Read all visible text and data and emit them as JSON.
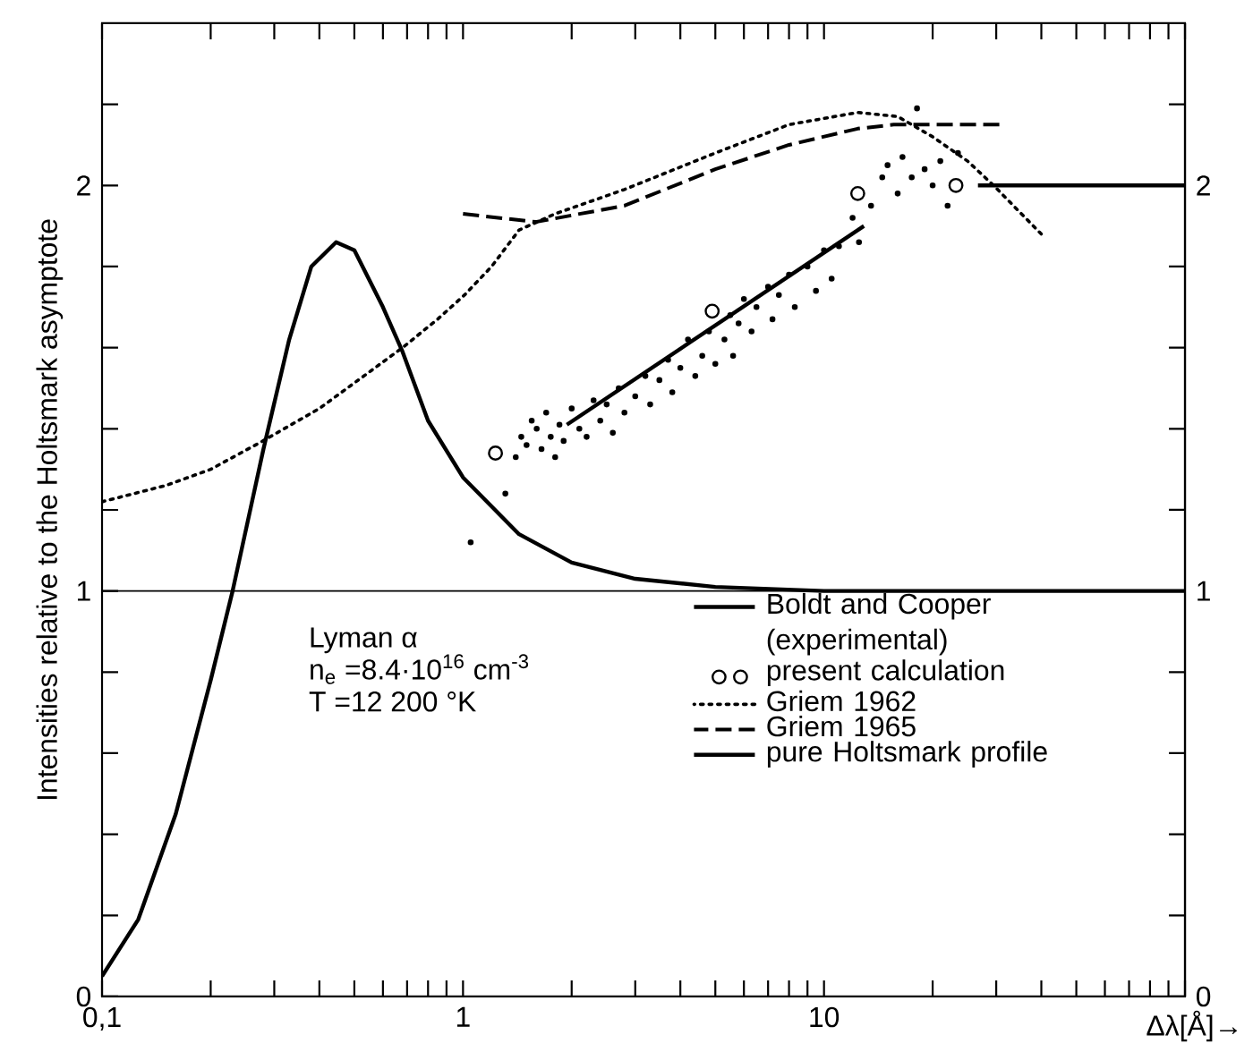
{
  "chart_data": {
    "type": "line",
    "xlabel": "Δλ[Å]→",
    "ylabel": "Intensities relative to the Holtsmark asymptote",
    "log": "x",
    "xlim": [
      0.1,
      100
    ],
    "xticks": [
      {
        "value": 0.1,
        "label": "0,1"
      },
      {
        "value": 0.2,
        "label": null
      },
      {
        "value": 0.3,
        "label": null
      },
      {
        "value": 0.4,
        "label": null
      },
      {
        "value": 0.5,
        "label": null
      },
      {
        "value": 0.6,
        "label": null
      },
      {
        "value": 0.7,
        "label": null
      },
      {
        "value": 0.8,
        "label": null
      },
      {
        "value": 0.9,
        "label": null
      },
      1,
      {
        "value": 2,
        "label": null
      },
      {
        "value": 3,
        "label": null
      },
      {
        "value": 4,
        "label": null
      },
      {
        "value": 5,
        "label": null
      },
      {
        "value": 6,
        "label": null
      },
      {
        "value": 7,
        "label": null
      },
      {
        "value": 8,
        "label": null
      },
      {
        "value": 9,
        "label": null
      },
      10,
      {
        "value": 20,
        "label": null
      },
      {
        "value": 30,
        "label": null
      },
      {
        "value": 40,
        "label": null
      },
      {
        "value": 50,
        "label": null
      },
      {
        "value": 60,
        "label": null
      },
      {
        "value": 70,
        "label": null
      },
      {
        "value": 80,
        "label": null
      },
      {
        "value": 90,
        "label": null
      },
      {
        "value": 100,
        "label": null
      }
    ],
    "ylim": [
      0,
      2.4
    ],
    "yticks": [
      0,
      {
        "value": 0.2,
        "label": null
      },
      {
        "value": 0.4,
        "label": null
      },
      {
        "value": 0.6,
        "label": null
      },
      {
        "value": 0.8,
        "label": null
      },
      1,
      {
        "value": 1.2,
        "label": null
      },
      {
        "value": 1.4,
        "label": null
      },
      {
        "value": 1.6,
        "label": null
      },
      {
        "value": 1.8,
        "label": null
      },
      2,
      {
        "value": 2.2,
        "label": null
      }
    ],
    "y2lim": [
      0,
      2.4
    ],
    "y2ticks": [
      0,
      {
        "value": 0.2,
        "label": null
      },
      {
        "value": 0.4,
        "label": null
      },
      {
        "value": 0.6,
        "label": null
      },
      {
        "value": 0.8,
        "label": null
      },
      1,
      {
        "value": 1.2,
        "label": null
      },
      {
        "value": 1.4,
        "label": null
      },
      {
        "value": 1.6,
        "label": null
      },
      {
        "value": 1.8,
        "label": null
      },
      2,
      {
        "value": 2.2,
        "label": null
      }
    ],
    "ref_lines": [
      {
        "axis": "y",
        "value": 1,
        "color": "#000000"
      }
    ],
    "legend": "bottom right",
    "annotations": [
      "Lyman α",
      "n$_{e}$ =8.4·10$^{16}$ cm$^{-3}$",
      "T =12 200 °K"
    ],
    "series": [
      {
        "name": "Boldt and Cooper (experimental)",
        "type": "line",
        "color": "#000000",
        "line_style": "solid",
        "marker": "none",
        "x": [
          1.94,
          12.9
        ],
        "values": [
          1.41,
          1.9
        ]
      },
      {
        "name": "present calculation",
        "type": "scatter",
        "color": "#000000",
        "marker": "circle",
        "x": [
          1.23,
          4.9,
          12.4,
          23.2
        ],
        "values": [
          1.34,
          1.69,
          1.98,
          2.0
        ]
      },
      {
        "name": "Griem 1962",
        "type": "line",
        "color": "#000000",
        "line_style": "dotted",
        "marker": "none",
        "x": [
          0.1,
          0.15,
          0.2,
          0.279,
          0.4,
          0.55,
          0.68,
          0.85,
          1.01,
          1.2,
          1.43,
          1.8,
          2.8,
          5,
          8,
          12.4,
          16,
          20,
          25,
          29.5,
          40
        ],
        "values": [
          1.22,
          1.26,
          1.3,
          1.37,
          1.45,
          1.54,
          1.6,
          1.67,
          1.73,
          1.8,
          1.89,
          1.93,
          1.99,
          2.08,
          2.15,
          2.18,
          2.17,
          2.12,
          2.06,
          2.0,
          1.88
        ]
      },
      {
        "name": "Griem 1965",
        "type": "line",
        "color": "#000000",
        "line_style": "dashed",
        "marker": "none",
        "x": [
          1.0,
          1.59,
          2.8,
          5,
          8,
          12.4,
          15.6,
          31
        ],
        "values": [
          1.93,
          1.91,
          1.95,
          2.04,
          2.1,
          2.14,
          2.15,
          2.15
        ]
      },
      {
        "name": "pure Holtsmark profile",
        "type": "line",
        "color": "#000000",
        "line_style": "solid",
        "marker": "none",
        "x": [
          0.1,
          0.126,
          0.16,
          0.2,
          0.23,
          0.28,
          0.33,
          0.38,
          0.445,
          0.5,
          0.6,
          0.68,
          0.8,
          1.0,
          1.43,
          2,
          3,
          5,
          10,
          100
        ],
        "values": [
          0.05,
          0.19,
          0.45,
          0.78,
          1.0,
          1.35,
          1.62,
          1.8,
          1.86,
          1.84,
          1.7,
          1.59,
          1.42,
          1.28,
          1.14,
          1.07,
          1.03,
          1.01,
          1.0,
          1.0
        ]
      },
      {
        "type": "scatter",
        "color": "#000000",
        "marker": "circle",
        "x": [
          1.05,
          1.31,
          1.4,
          1.45,
          1.5,
          1.55,
          1.6,
          1.65,
          1.7,
          1.75,
          1.8,
          1.85,
          1.9,
          2.0,
          2.1,
          2.2,
          2.3,
          2.4,
          2.5,
          2.6,
          2.7,
          2.8,
          3.0,
          3.2,
          3.3,
          3.5,
          3.7,
          3.8,
          4.0,
          4.2,
          4.4,
          4.6,
          4.8,
          5.0,
          5.3,
          5.5,
          5.6,
          5.8,
          6.0,
          6.3,
          6.5,
          7.0,
          7.2,
          7.5,
          8.0,
          8.3,
          9.0,
          9.5,
          10,
          10.5,
          11,
          12,
          12.5,
          13.5,
          14.5,
          15,
          16,
          16.5,
          17.5,
          18.1,
          19,
          20,
          21,
          22,
          23.5
        ],
        "values": [
          1.12,
          1.24,
          1.33,
          1.38,
          1.36,
          1.42,
          1.4,
          1.35,
          1.44,
          1.38,
          1.33,
          1.41,
          1.37,
          1.45,
          1.4,
          1.38,
          1.47,
          1.42,
          1.46,
          1.39,
          1.5,
          1.44,
          1.48,
          1.53,
          1.46,
          1.52,
          1.57,
          1.49,
          1.55,
          1.62,
          1.53,
          1.58,
          1.64,
          1.56,
          1.62,
          1.68,
          1.58,
          1.66,
          1.72,
          1.64,
          1.7,
          1.75,
          1.67,
          1.73,
          1.78,
          1.7,
          1.8,
          1.74,
          1.84,
          1.77,
          1.85,
          1.92,
          1.86,
          1.95,
          2.02,
          2.05,
          1.98,
          2.07,
          2.02,
          2.19,
          2.04,
          2.0,
          2.06,
          1.95,
          2.08
        ]
      },
      {
        "type": "line",
        "color": "#000000",
        "line_style": "solid",
        "marker": "none",
        "x": [
          26.7,
          100
        ],
        "values": [
          2.0,
          2.0
        ]
      }
    ]
  }
}
